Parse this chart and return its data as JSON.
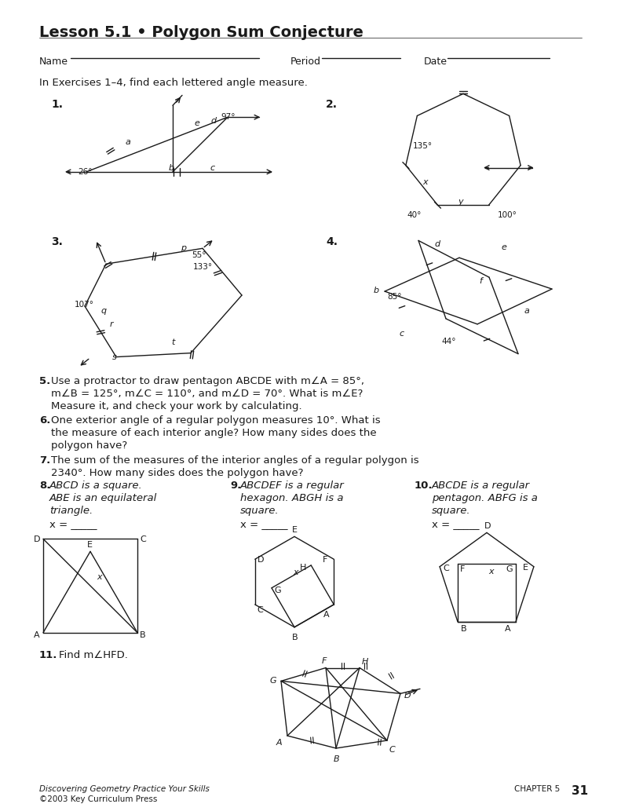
{
  "title": "Lesson 5.1 • Polygon Sum Conjecture",
  "bg_color": "#ffffff",
  "text_color": "#1a1a1a",
  "footer_left": "Discovering Geometry Practice Your Skills",
  "footer_right_label": "CHAPTER 5",
  "footer_right_num": "31",
  "footer_copy": "©2003 Key Curriculum Press"
}
